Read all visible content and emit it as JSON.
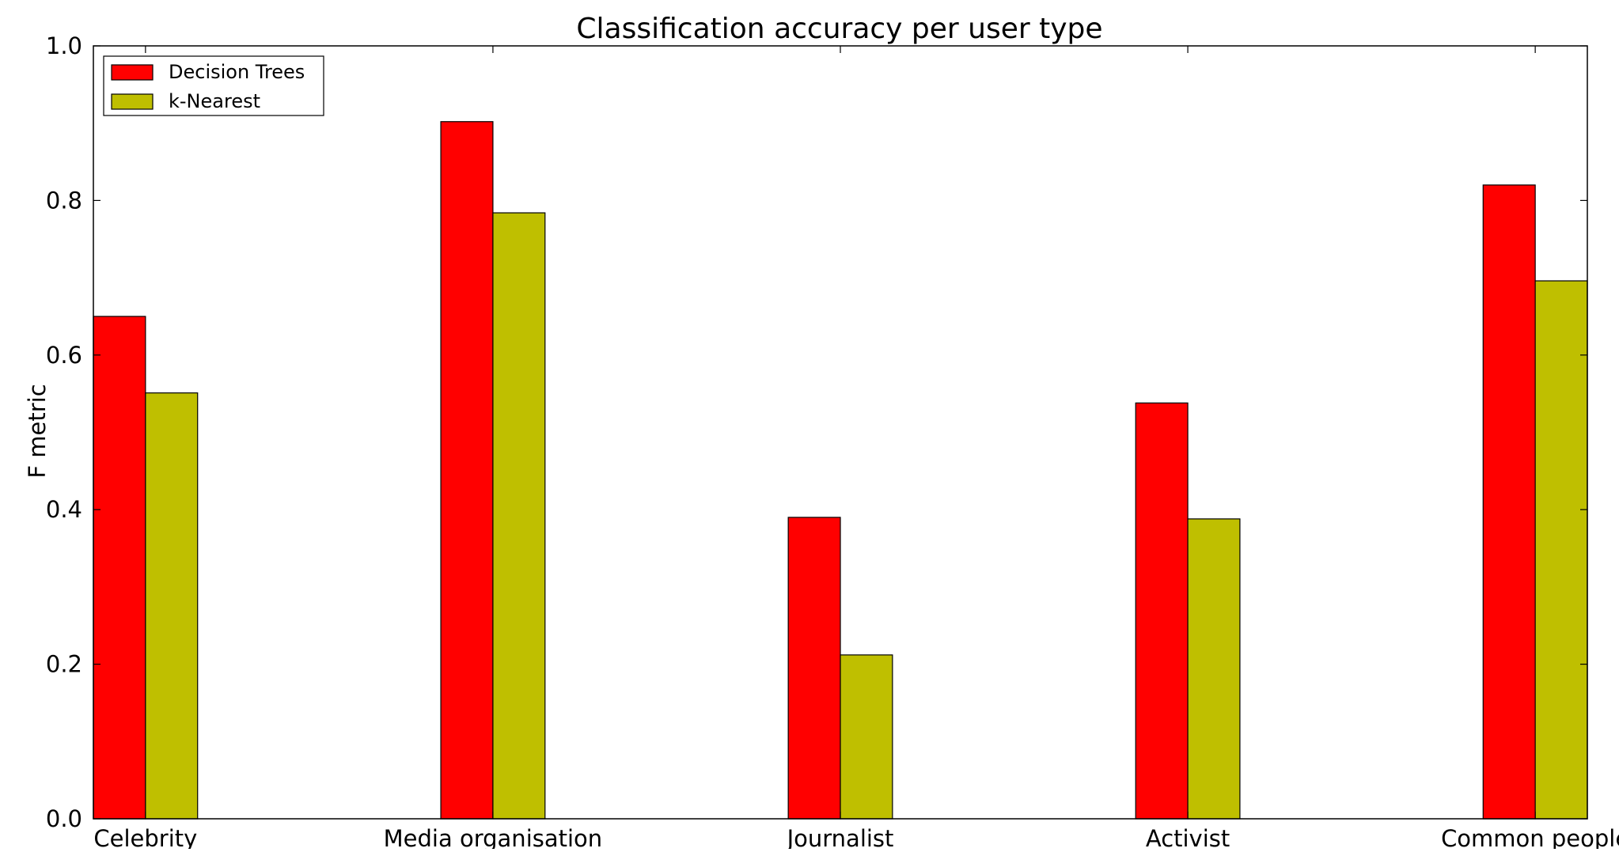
{
  "chart_data": {
    "type": "bar",
    "title": "Classification accuracy per user type",
    "xlabel": "",
    "ylabel": "F metric",
    "categories": [
      "Celebrity",
      "Media organisation",
      "Journalist",
      "Activist",
      "Common people"
    ],
    "series": [
      {
        "name": "Decision Trees",
        "color": "#ff0000",
        "values": [
          0.65,
          0.902,
          0.39,
          0.538,
          0.82
        ]
      },
      {
        "name": "k-Nearest",
        "color": "#bfbf00",
        "values": [
          0.551,
          0.784,
          0.212,
          0.388,
          0.696
        ]
      }
    ],
    "ylim": [
      0.0,
      1.0
    ],
    "yticks": [
      0.0,
      0.2,
      0.4,
      0.6,
      0.8,
      1.0
    ],
    "ytick_labels": [
      "0.0",
      "0.2",
      "0.4",
      "0.6",
      "0.8",
      "1.0"
    ],
    "grid": false,
    "legend_position": "top-left"
  }
}
